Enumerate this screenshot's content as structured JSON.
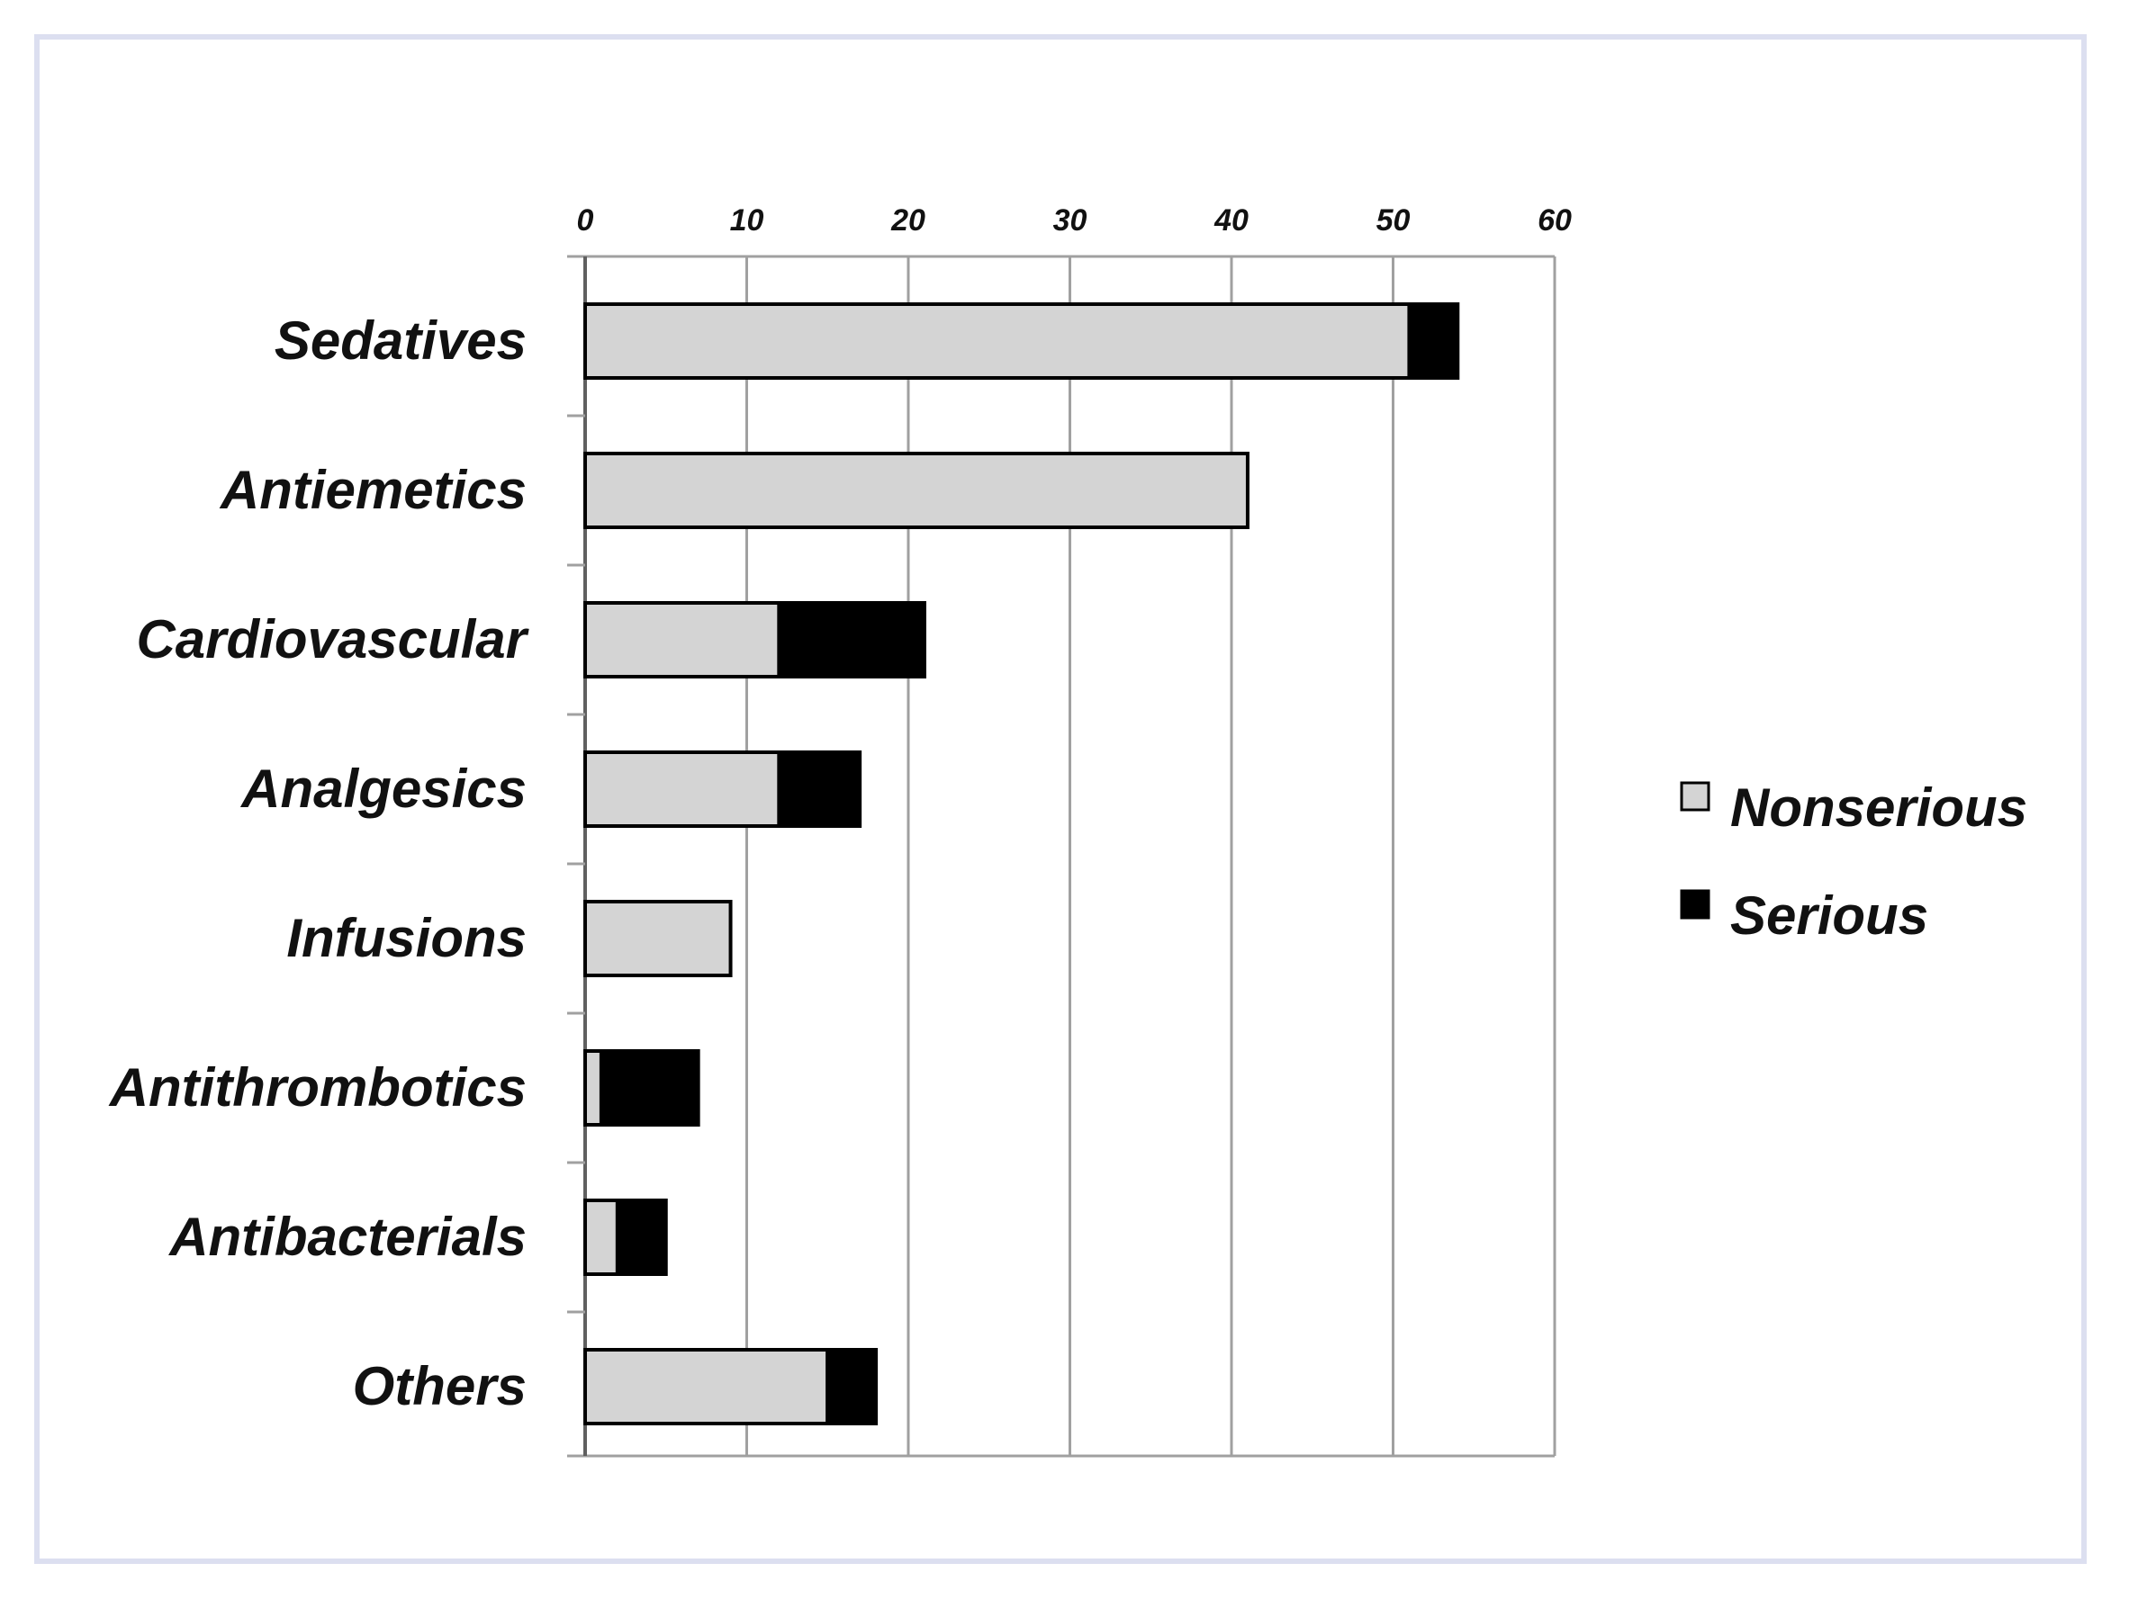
{
  "chart_data": {
    "type": "bar",
    "orientation": "horizontal",
    "stacked": true,
    "title": "",
    "xlabel": "",
    "ylabel": "",
    "xlim": [
      0,
      60
    ],
    "xticks": [
      0,
      10,
      20,
      30,
      40,
      50,
      60
    ],
    "xtick_labels": [
      "0",
      "10",
      "20",
      "30",
      "40",
      "50",
      "60"
    ],
    "grid": true,
    "legend_position": "right",
    "categories": [
      "Sedatives",
      "Antiemetics",
      "Cardiovascular",
      "Analgesics",
      "Infusions",
      "Antithrombotics",
      "Antibacterials",
      "Others"
    ],
    "series": [
      {
        "name": "Nonserious",
        "color": "#d4d4d4",
        "values": [
          51,
          41,
          12,
          12,
          9,
          1,
          2,
          15
        ]
      },
      {
        "name": "Serious",
        "color": "#000000",
        "values": [
          3,
          0,
          9,
          5,
          0,
          6,
          3,
          3
        ]
      }
    ]
  },
  "colors": {
    "frame_border": "#dcdff0",
    "gridline": "#a0a0a0",
    "bar_outline": "#000000"
  }
}
